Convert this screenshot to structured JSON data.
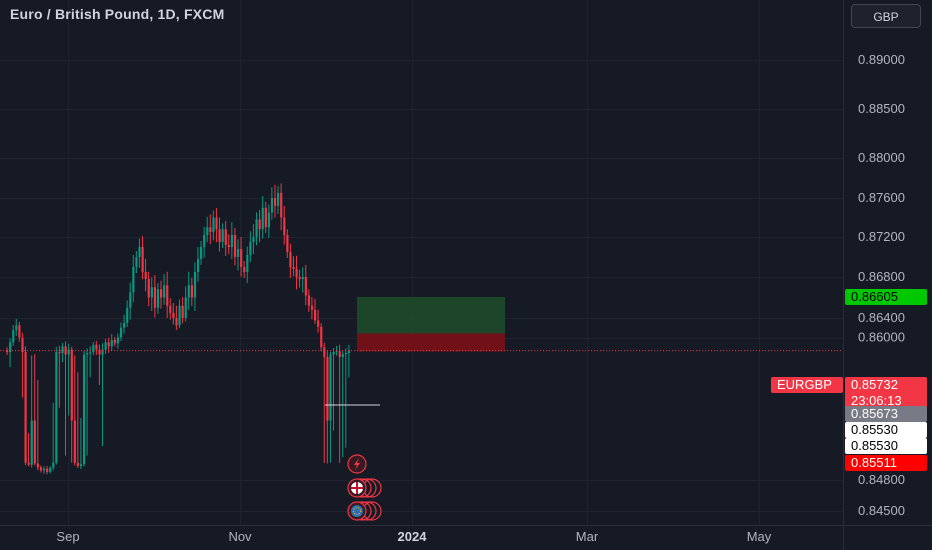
{
  "header": {
    "title": "Euro / British Pound, 1D, FXCM",
    "currency": "GBP"
  },
  "chart_data": {
    "type": "candlestick",
    "symbol": "EURGBP",
    "ylim": [
      0.8445,
      0.8935
    ],
    "y_ticks": [
      0.89,
      0.885,
      0.88,
      0.876,
      0.872,
      0.868,
      0.864,
      0.86,
      0.848,
      0.845
    ],
    "y_tick_labels": [
      "0.89000",
      "0.88500",
      "0.88000",
      "0.87600",
      "0.87200",
      "0.86800",
      "0.86400",
      "0.86000",
      "0.84800",
      "0.84500"
    ],
    "x_labels": [
      "Sep",
      "Nov",
      "2024",
      "Mar",
      "May"
    ],
    "series_closes": [
      0.857,
      0.859,
      0.8615,
      0.8625,
      0.86,
      0.857,
      0.8548,
      0.854,
      0.8555,
      0.8545,
      0.853,
      0.8518,
      0.8524,
      0.8512,
      0.8528,
      0.8548,
      0.857,
      0.8568,
      0.8582,
      0.8565,
      0.8575,
      0.8555,
      0.8548,
      0.8535,
      0.8542,
      0.8565,
      0.8568,
      0.857,
      0.8585,
      0.8575,
      0.8565,
      0.8575,
      0.859,
      0.8582,
      0.8595,
      0.8588,
      0.86,
      0.862,
      0.863,
      0.865,
      0.8665,
      0.869,
      0.87,
      0.871,
      0.8685,
      0.8678,
      0.866,
      0.867,
      0.865,
      0.8668,
      0.866,
      0.8672,
      0.8652,
      0.8645,
      0.864,
      0.8625,
      0.8652,
      0.864,
      0.866,
      0.8672,
      0.866,
      0.8685,
      0.8698,
      0.871,
      0.8722,
      0.873,
      0.8725,
      0.874,
      0.8728,
      0.8715,
      0.8728,
      0.8712,
      0.871,
      0.8722,
      0.87,
      0.8708,
      0.869,
      0.8685,
      0.8702,
      0.8715,
      0.872,
      0.8738,
      0.8728,
      0.875,
      0.873,
      0.8745,
      0.876,
      0.8752,
      0.8765,
      0.874,
      0.8722,
      0.8705,
      0.869,
      0.8688,
      0.868,
      0.8678,
      0.868,
      0.8662,
      0.8652,
      0.8648,
      0.8635,
      0.8622,
      0.858,
      0.856,
      0.8555,
      0.8565,
      0.857,
      0.8572,
      0.856,
      0.8566,
      0.8568,
      0.8573
    ],
    "last_price": {
      "symbol": "EURGBP",
      "value": "0.85732",
      "countdown": "23:06:13",
      "color": "#f23645"
    },
    "price_tags": [
      {
        "value": "0.86605",
        "bg": "#00c800",
        "fg": "#000000"
      },
      {
        "value": "0.85673",
        "bg": "#787b86",
        "fg": "#ffffff"
      },
      {
        "value": "0.85530",
        "bg": "#ffffff",
        "fg": "#000000"
      },
      {
        "value": "0.85530",
        "bg": "#ffffff",
        "fg": "#000000"
      },
      {
        "value": "0.85511",
        "bg": "#ff0000",
        "fg": "#ffffff"
      }
    ],
    "position": {
      "entry": 0.85673,
      "target": 0.86605,
      "stop": 0.85511
    },
    "event_icons": [
      "lightning-icon",
      "uk-flag-icon",
      "eu-flag-icon"
    ],
    "colors": {
      "up": "#089981",
      "down": "#f23645",
      "background": "#161a25",
      "grid": "#1e222d",
      "profit_zone": "#1e4d2b",
      "loss_zone": "#7a1016"
    }
  }
}
